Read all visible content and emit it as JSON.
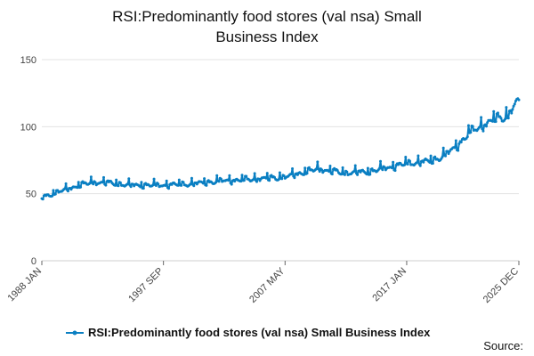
{
  "chart_data": {
    "type": "line",
    "title": "RSI:Predominantly food stores (val nsa) Small Business Index",
    "xlabel": "",
    "ylabel": "",
    "x_tick_labels": [
      "1988 JAN",
      "1997 SEP",
      "2007 MAY",
      "2017 JAN",
      "2025 DEC"
    ],
    "y_ticks": [
      0,
      50,
      100,
      150
    ],
    "ylim": [
      0,
      150
    ],
    "grid": true,
    "legend": "bottom",
    "series": [
      {
        "name": "RSI:Predominantly food stores (val nsa) Small Business Index",
        "color": "#0a7fc2",
        "start": "1988 JAN",
        "end": "2025 DEC",
        "frequency": "monthly",
        "approx_trend_points": [
          [
            "1988 JAN",
            47
          ],
          [
            "1989 JAN",
            50
          ],
          [
            "1990 JAN",
            53
          ],
          [
            "1991 JAN",
            56
          ],
          [
            "1992 JAN",
            58
          ],
          [
            "1993 JAN",
            58
          ],
          [
            "1995 JAN",
            56
          ],
          [
            "1997 SEP",
            56
          ],
          [
            "2000 JAN",
            57
          ],
          [
            "2002 JAN",
            59
          ],
          [
            "2004 JAN",
            60
          ],
          [
            "2007 MAY",
            62
          ],
          [
            "2009 JAN",
            66
          ],
          [
            "2010 JAN",
            68
          ],
          [
            "2012 JAN",
            65
          ],
          [
            "2014 JAN",
            66
          ],
          [
            "2017 JAN",
            72
          ],
          [
            "2019 JAN",
            74
          ],
          [
            "2020 JAN",
            78
          ],
          [
            "2021 JAN",
            85
          ],
          [
            "2022 JAN",
            95
          ],
          [
            "2023 JAN",
            100
          ],
          [
            "2024 JAN",
            105
          ],
          [
            "2025 JAN",
            107
          ],
          [
            "2025 DEC",
            120
          ]
        ]
      }
    ]
  },
  "source_label": "Source:"
}
